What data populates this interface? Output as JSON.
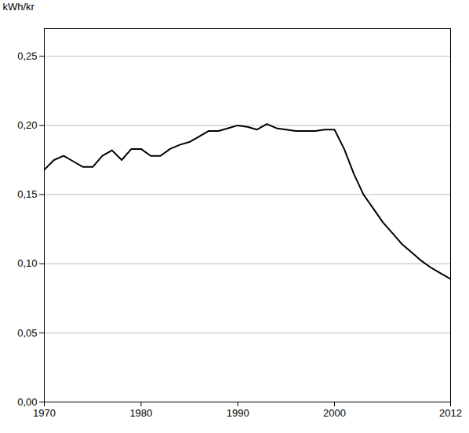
{
  "chart_data": {
    "type": "line",
    "x": [
      1970,
      1971,
      1972,
      1973,
      1974,
      1975,
      1976,
      1977,
      1978,
      1979,
      1980,
      1981,
      1982,
      1983,
      1984,
      1985,
      1986,
      1987,
      1988,
      1989,
      1990,
      1991,
      1992,
      1993,
      1994,
      1995,
      1996,
      1997,
      1998,
      1999,
      2000,
      2001,
      2002,
      2003,
      2004,
      2005,
      2006,
      2007,
      2008,
      2009,
      2010,
      2011,
      2012
    ],
    "values": [
      0.168,
      0.175,
      0.178,
      0.174,
      0.17,
      0.17,
      0.178,
      0.182,
      0.175,
      0.183,
      0.183,
      0.178,
      0.178,
      0.183,
      0.186,
      0.188,
      0.192,
      0.196,
      0.196,
      0.198,
      0.2,
      0.199,
      0.197,
      0.201,
      0.198,
      0.197,
      0.196,
      0.196,
      0.196,
      0.197,
      0.197,
      0.183,
      0.165,
      0.15,
      0.14,
      0.13,
      0.122,
      0.114,
      0.108,
      0.102,
      0.097,
      0.093,
      0.089
    ],
    "ylabel": "kWh/kr",
    "xlim": [
      1970,
      2012
    ],
    "xticks": [
      1970,
      1980,
      1990,
      2000,
      2012
    ],
    "ylim": [
      0.0,
      0.27
    ],
    "yticks": [
      {
        "value": 0.0,
        "label": "0,00"
      },
      {
        "value": 0.05,
        "label": "0,05"
      },
      {
        "value": 0.1,
        "label": "0,10"
      },
      {
        "value": 0.15,
        "label": "0,15"
      },
      {
        "value": 0.2,
        "label": "0,20"
      },
      {
        "value": 0.25,
        "label": "0,25"
      }
    ],
    "grid": "y"
  }
}
